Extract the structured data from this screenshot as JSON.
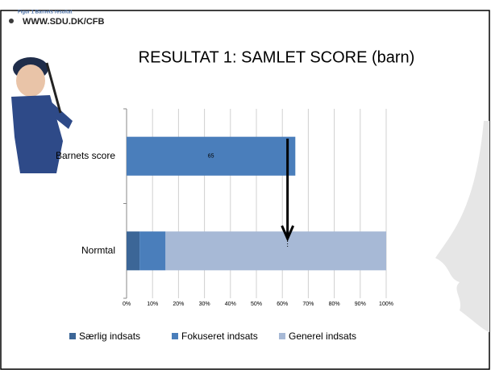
{
  "header": {
    "figure_label": "Figur 1 Barnets resultat",
    "url": "WWW.SDU.DK/CFB"
  },
  "chart_data": {
    "type": "stacked_barh",
    "title": "RESULTAT 1: SAMLET SCORE (barn)",
    "categories": [
      "Barnets score",
      "Normtal"
    ],
    "series": [
      {
        "name": "Særlig indsats",
        "color": "#3c6697",
        "values": [
          null,
          5
        ]
      },
      {
        "name": "Fokuseret indsats",
        "color": "#4a7ebb",
        "values": [
          65,
          10
        ],
        "value_labels": [
          "65",
          null
        ]
      },
      {
        "name": "Generel indsats",
        "color": "#a7b9d6",
        "values": [
          null,
          85
        ]
      }
    ],
    "xlim": [
      0,
      100
    ],
    "xticks": [
      {
        "value": 0,
        "label": "0%"
      },
      {
        "value": 10,
        "label": "10%"
      },
      {
        "value": 20,
        "label": "20%"
      },
      {
        "value": 30,
        "label": "30%"
      },
      {
        "value": 40,
        "label": "40%"
      },
      {
        "value": 50,
        "label": "50%"
      },
      {
        "value": 60,
        "label": "60%"
      },
      {
        "value": 70,
        "label": "70%"
      },
      {
        "value": 80,
        "label": "80%"
      },
      {
        "value": 90,
        "label": "90%"
      },
      {
        "value": 100,
        "label": "100%"
      }
    ],
    "grid": true,
    "arrow_at": 62,
    "legend": "bottom"
  }
}
